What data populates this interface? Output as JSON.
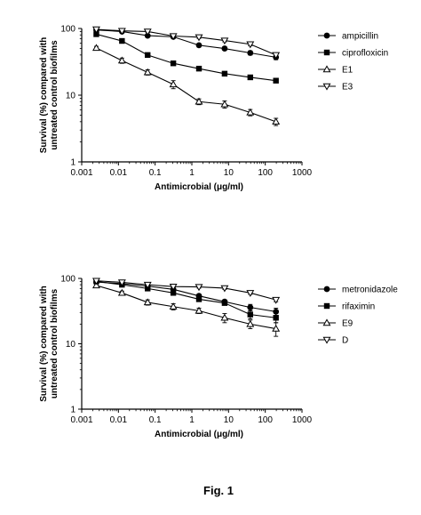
{
  "caption": "Fig. 1",
  "chart_data": [
    {
      "type": "line",
      "xscale": "log",
      "yscale": "log",
      "xlim": [
        0.001,
        1000
      ],
      "ylim": [
        1,
        100
      ],
      "xlabel": "Antimicrobial (μg/ml)",
      "ylabel": [
        "Survival (%) compared with",
        "untreated control biofilms"
      ],
      "xticks": [
        "0.001",
        "0.01",
        "0.1",
        "1",
        "10",
        "100",
        "1000"
      ],
      "yticks": [
        "1",
        "10",
        "100"
      ],
      "legend_position": "right",
      "x": [
        0.0025,
        0.0125,
        0.0625,
        0.3125,
        1.5625,
        7.8125,
        39.0625,
        195.3125
      ],
      "series": [
        {
          "name": "ampicillin",
          "marker": "circle",
          "values": [
            95,
            90,
            78,
            75,
            56,
            50,
            43,
            37
          ],
          "errors": [
            3,
            3,
            3,
            3,
            3,
            3,
            3,
            3
          ]
        },
        {
          "name": "ciprofloxicin",
          "marker": "square",
          "values": [
            82,
            65,
            40,
            30,
            25,
            21,
            18.5,
            16.5
          ],
          "errors": [
            3,
            2,
            2,
            1,
            1,
            1,
            1,
            1
          ]
        },
        {
          "name": "E1",
          "marker": "triangle-up",
          "values": [
            51,
            33,
            22,
            14.5,
            8,
            7.3,
            5.5,
            4
          ],
          "errors": [
            3,
            3,
            2,
            2,
            0.8,
            0.9,
            0.6,
            0.5
          ]
        },
        {
          "name": "E3",
          "marker": "triangle-down",
          "values": [
            97,
            92,
            90,
            77,
            74,
            66,
            58,
            40
          ],
          "errors": [
            3,
            3,
            3,
            3,
            3,
            3,
            3,
            3
          ]
        }
      ]
    },
    {
      "type": "line",
      "xscale": "log",
      "yscale": "log",
      "xlim": [
        0.001,
        1000
      ],
      "ylim": [
        1,
        100
      ],
      "xlabel": "Antimicrobial (μg/ml)",
      "ylabel": [
        "Survival (%) compared with",
        "untreated control biofilms"
      ],
      "xticks": [
        "0.001",
        "0.01",
        "0.1",
        "1",
        "10",
        "100",
        "1000"
      ],
      "yticks": [
        "1",
        "10",
        "100"
      ],
      "legend_position": "right",
      "x": [
        0.0025,
        0.0125,
        0.0625,
        0.3125,
        1.5625,
        7.8125,
        39.0625,
        195.3125
      ],
      "series": [
        {
          "name": "metronidazole",
          "marker": "circle",
          "values": [
            88,
            83,
            76,
            68,
            54,
            44,
            36,
            31
          ],
          "errors": [
            3,
            3,
            3,
            3,
            3,
            3,
            4,
            4
          ]
        },
        {
          "name": "rifaximin",
          "marker": "square",
          "values": [
            90,
            80,
            70,
            60,
            48,
            42,
            28,
            25
          ],
          "errors": [
            3,
            3,
            3,
            3,
            3,
            3,
            4,
            4
          ]
        },
        {
          "name": "E9",
          "marker": "triangle-up",
          "values": [
            78,
            60,
            43,
            37,
            32,
            25,
            20,
            17
          ],
          "errors": [
            4,
            4,
            4,
            4,
            3,
            4,
            3,
            4
          ]
        },
        {
          "name": "D",
          "marker": "triangle-down",
          "values": [
            92,
            87,
            80,
            75,
            74,
            71,
            60,
            47
          ],
          "errors": [
            3,
            3,
            3,
            3,
            3,
            3,
            3,
            3
          ]
        }
      ]
    }
  ]
}
